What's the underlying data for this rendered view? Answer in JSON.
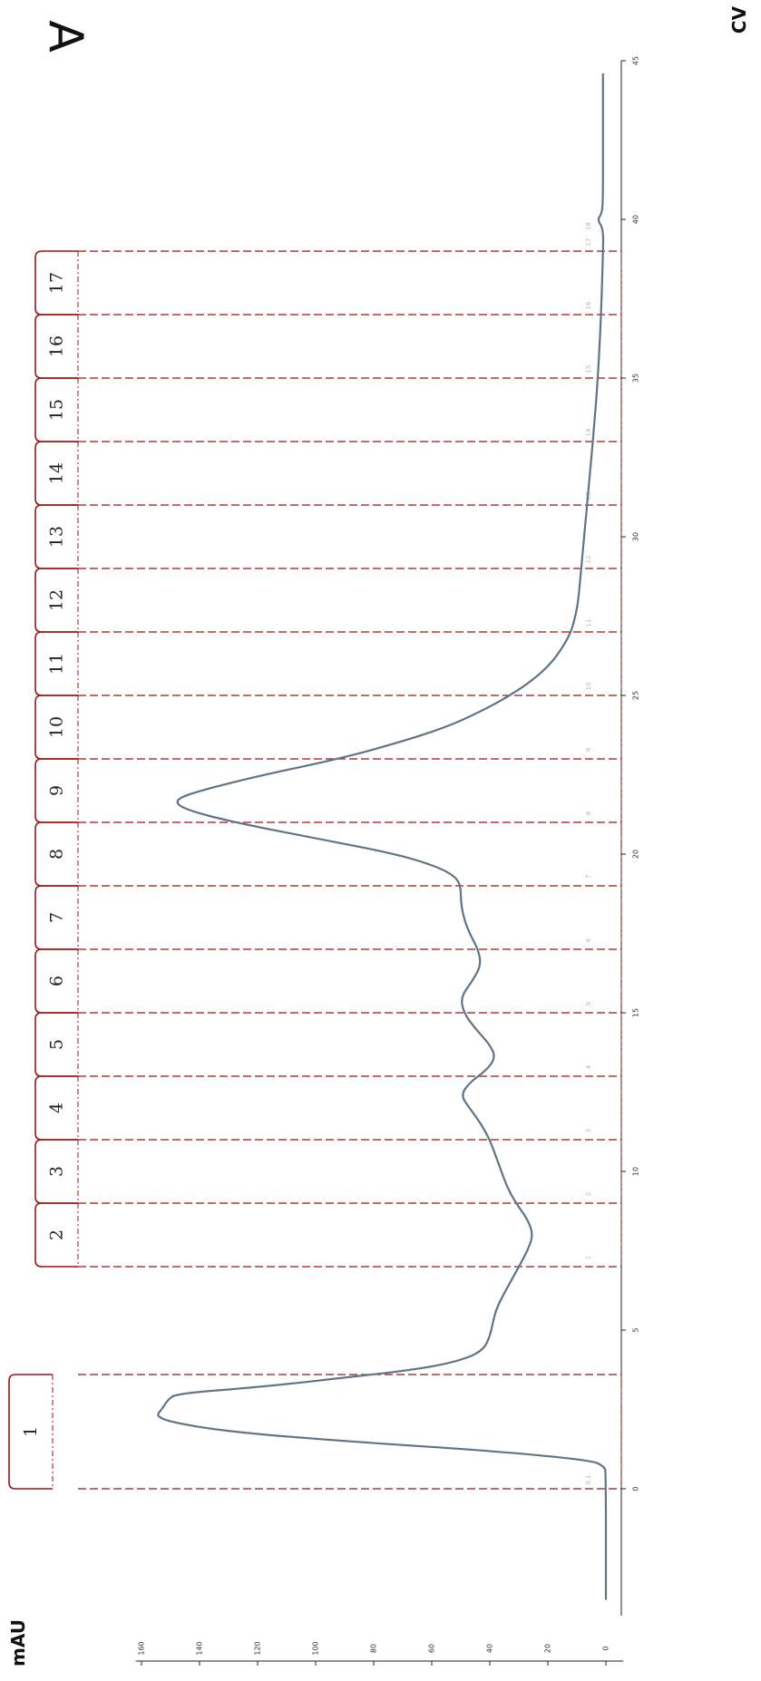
{
  "panel_letter": "A",
  "axis_units": {
    "x": "CV",
    "y": "mAU"
  },
  "colors": {
    "trace": "#5f7487",
    "fraction": "#9b1414",
    "axis": "#222222",
    "text": "#111111"
  },
  "chart_data": {
    "type": "line",
    "title": "",
    "xlabel": "CV",
    "ylabel": "mAU",
    "orientation": "rotated-90-clockwise",
    "xlim": [
      -4,
      45
    ],
    "ylim": [
      -6,
      162
    ],
    "x_ticks": [
      "0",
      "5",
      "10",
      "15",
      "20",
      "25",
      "30",
      "35",
      "40",
      "45"
    ],
    "y_ticks": [
      "0",
      "20",
      "40",
      "60",
      "80",
      "100",
      "120",
      "140",
      "160"
    ],
    "series": [
      {
        "points": [
          [
            -3.5,
            0
          ],
          [
            0.5,
            0
          ],
          [
            0.7,
            0.5
          ],
          [
            0.9,
            5
          ],
          [
            1.2,
            40
          ],
          [
            1.5,
            90
          ],
          [
            1.8,
            130
          ],
          [
            2.1,
            150
          ],
          [
            2.3,
            155
          ],
          [
            2.5,
            153
          ],
          [
            2.8,
            151
          ],
          [
            3.0,
            148
          ],
          [
            3.2,
            120
          ],
          [
            3.5,
            90
          ],
          [
            3.8,
            62
          ],
          [
            4.1,
            48
          ],
          [
            4.4,
            42
          ],
          [
            4.8,
            40
          ],
          [
            5.2,
            39
          ],
          [
            5.6,
            38
          ],
          [
            6.0,
            36
          ],
          [
            6.5,
            33
          ],
          [
            7.0,
            30
          ],
          [
            7.5,
            27
          ],
          [
            8.0,
            25
          ],
          [
            8.5,
            27
          ],
          [
            9.0,
            31
          ],
          [
            9.5,
            34
          ],
          [
            10.0,
            36
          ],
          [
            10.5,
            38
          ],
          [
            11.0,
            40
          ],
          [
            11.5,
            43
          ],
          [
            12.0,
            47
          ],
          [
            12.4,
            50
          ],
          [
            12.8,
            47
          ],
          [
            13.2,
            41
          ],
          [
            13.6,
            38
          ],
          [
            14.0,
            40
          ],
          [
            14.5,
            45
          ],
          [
            15.0,
            49
          ],
          [
            15.5,
            50
          ],
          [
            16.0,
            46
          ],
          [
            16.5,
            43
          ],
          [
            17.0,
            44
          ],
          [
            17.5,
            47
          ],
          [
            18.0,
            49
          ],
          [
            18.5,
            50
          ],
          [
            19.0,
            50
          ],
          [
            19.3,
            52
          ],
          [
            19.6,
            58
          ],
          [
            20.0,
            72
          ],
          [
            20.5,
            100
          ],
          [
            21.0,
            128
          ],
          [
            21.4,
            145
          ],
          [
            21.7,
            149
          ],
          [
            22.0,
            140
          ],
          [
            22.5,
            118
          ],
          [
            23.0,
            92
          ],
          [
            23.5,
            72
          ],
          [
            24.0,
            55
          ],
          [
            24.5,
            43
          ],
          [
            25.0,
            33
          ],
          [
            25.5,
            25
          ],
          [
            26.0,
            19
          ],
          [
            26.5,
            15
          ],
          [
            27.0,
            12
          ],
          [
            27.5,
            10.5
          ],
          [
            28.0,
            9.5
          ],
          [
            29.0,
            8.5
          ],
          [
            30.0,
            7.5
          ],
          [
            31.0,
            6.5
          ],
          [
            32.0,
            5.5
          ],
          [
            33.0,
            4.5
          ],
          [
            34.0,
            3.6
          ],
          [
            35.0,
            2.8
          ],
          [
            36.0,
            2.2
          ],
          [
            37.0,
            1.7
          ],
          [
            38.0,
            1.3
          ],
          [
            39.0,
            1.0
          ],
          [
            39.7,
            0.9
          ],
          [
            40.0,
            3.0
          ],
          [
            40.2,
            1.2
          ],
          [
            41.0,
            1.0
          ],
          [
            42.0,
            1.0
          ],
          [
            43.0,
            1.0
          ],
          [
            44.0,
            1.0
          ],
          [
            44.6,
            1.0
          ]
        ]
      }
    ],
    "fractions": [
      {
        "label": "1",
        "start": 0,
        "end": 3.6
      },
      {
        "label": "2",
        "start": 7,
        "end": 9
      },
      {
        "label": "3",
        "start": 9,
        "end": 11
      },
      {
        "label": "4",
        "start": 11,
        "end": 13
      },
      {
        "label": "5",
        "start": 13,
        "end": 15
      },
      {
        "label": "6",
        "start": 15,
        "end": 17
      },
      {
        "label": "7",
        "start": 17,
        "end": 19
      },
      {
        "label": "8",
        "start": 19,
        "end": 21
      },
      {
        "label": "9",
        "start": 21,
        "end": 23
      },
      {
        "label": "10",
        "start": 23,
        "end": 25
      },
      {
        "label": "11",
        "start": 25,
        "end": 27
      },
      {
        "label": "12",
        "start": 27,
        "end": 29
      },
      {
        "label": "13",
        "start": 29,
        "end": 31
      },
      {
        "label": "14",
        "start": 31,
        "end": 33
      },
      {
        "label": "15",
        "start": 33,
        "end": 35
      },
      {
        "label": "16",
        "start": 35,
        "end": 37
      },
      {
        "label": "17",
        "start": 37,
        "end": 39
      }
    ],
    "collection_marks": [
      {
        "x": 0,
        "label": "0.1"
      },
      {
        "x": 7,
        "label": "1"
      },
      {
        "x": 9,
        "label": "2"
      },
      {
        "x": 11,
        "label": "3"
      },
      {
        "x": 13,
        "label": "4"
      },
      {
        "x": 15,
        "label": "5"
      },
      {
        "x": 17,
        "label": "6"
      },
      {
        "x": 19,
        "label": "7"
      },
      {
        "x": 21,
        "label": "8"
      },
      {
        "x": 23,
        "label": "9"
      },
      {
        "x": 25,
        "label": "10"
      },
      {
        "x": 27,
        "label": "11"
      },
      {
        "x": 29,
        "label": "12"
      },
      {
        "x": 31,
        "label": "13"
      },
      {
        "x": 33,
        "label": "14"
      },
      {
        "x": 35,
        "label": "15"
      },
      {
        "x": 37,
        "label": "16"
      },
      {
        "x": 39,
        "label": "17"
      },
      {
        "x": 39.5,
        "label": "18"
      }
    ],
    "grid": false,
    "legend": "none"
  }
}
